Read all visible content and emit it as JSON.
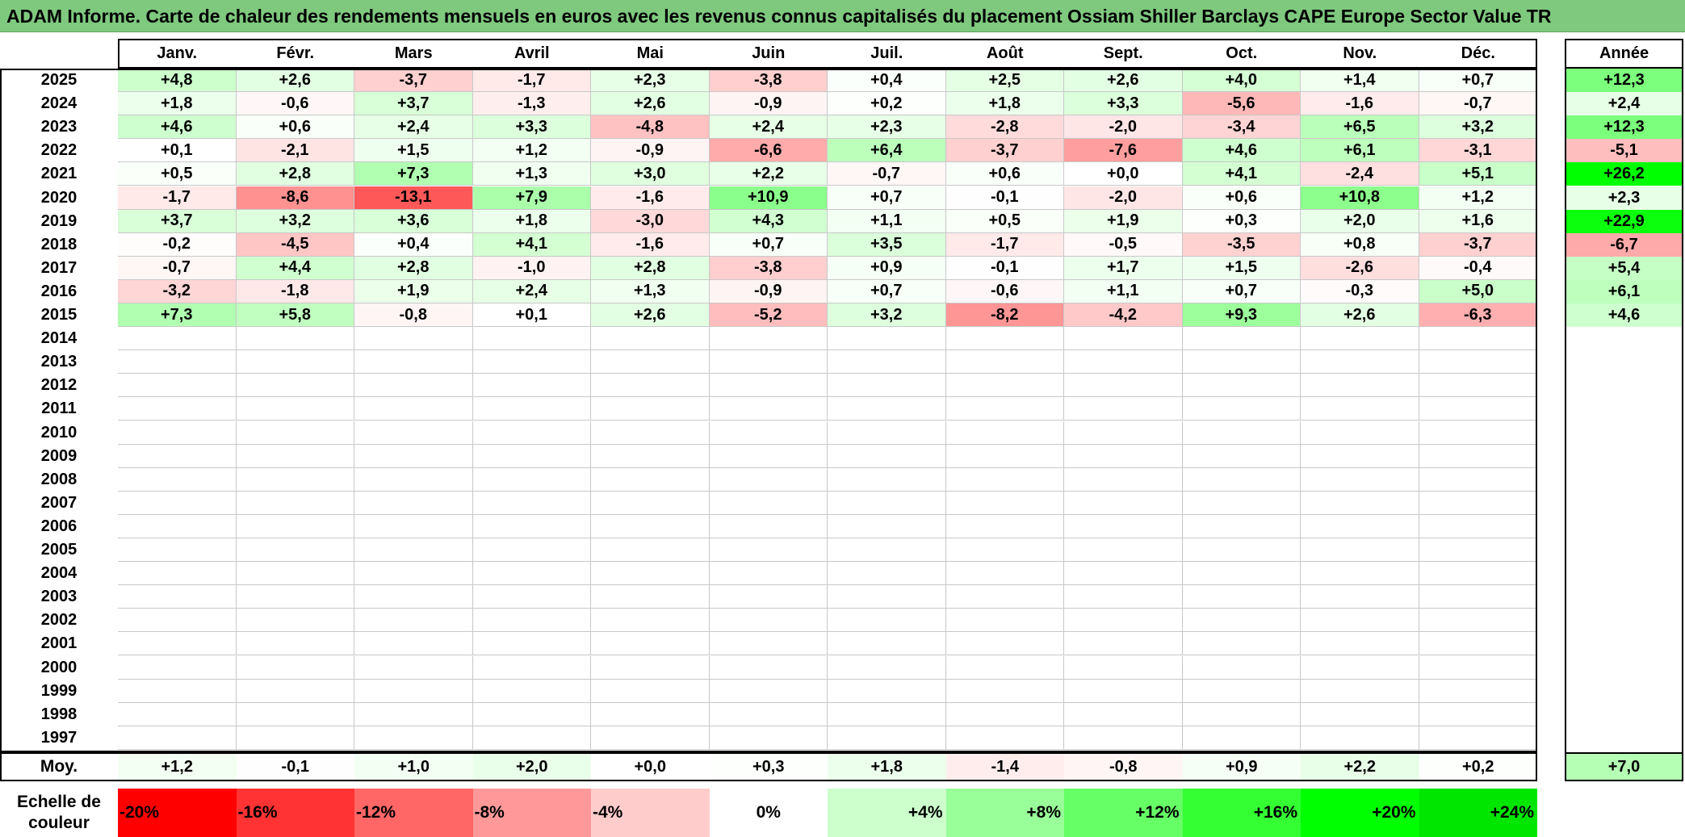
{
  "title": "ADAM Informe. Carte de chaleur des rendements mensuels en euros avec les revenus connus capitalisés du placement Ossiam Shiller Barclays CAPE Europe Sector Value TR",
  "chart_data": {
    "type": "heatmap",
    "title": "ADAM Informe. Carte de chaleur des rendements mensuels en euros avec les revenus connus capitalisés du placement Ossiam Shiller Barclays CAPE Europe Sector Value TR",
    "months": [
      "Janv.",
      "Févr.",
      "Mars",
      "Avril",
      "Mai",
      "Juin",
      "Juil.",
      "Août",
      "Sept.",
      "Oct.",
      "Nov.",
      "Déc."
    ],
    "year_header": "Année",
    "rows": [
      {
        "year": "2025",
        "values": [
          "+4,8",
          "+2,6",
          "-3,7",
          "-1,7",
          "+2,3",
          "-3,8",
          "+0,4",
          "+2,5",
          "+2,6",
          "+4,0",
          "+1,4",
          "+0,7"
        ],
        "annual": "+12,3"
      },
      {
        "year": "2024",
        "values": [
          "+1,8",
          "-0,6",
          "+3,7",
          "-1,3",
          "+2,6",
          "-0,9",
          "+0,2",
          "+1,8",
          "+3,3",
          "-5,6",
          "-1,6",
          "-0,7"
        ],
        "annual": "+2,4"
      },
      {
        "year": "2023",
        "values": [
          "+4,6",
          "+0,6",
          "+2,4",
          "+3,3",
          "-4,8",
          "+2,4",
          "+2,3",
          "-2,8",
          "-2,0",
          "-3,4",
          "+6,5",
          "+3,2"
        ],
        "annual": "+12,3"
      },
      {
        "year": "2022",
        "values": [
          "+0,1",
          "-2,1",
          "+1,5",
          "+1,2",
          "-0,9",
          "-6,6",
          "+6,4",
          "-3,7",
          "-7,6",
          "+4,6",
          "+6,1",
          "-3,1"
        ],
        "annual": "-5,1"
      },
      {
        "year": "2021",
        "values": [
          "+0,5",
          "+2,8",
          "+7,3",
          "+1,3",
          "+3,0",
          "+2,2",
          "-0,7",
          "+0,6",
          "+0,0",
          "+4,1",
          "-2,4",
          "+5,1"
        ],
        "annual": "+26,2"
      },
      {
        "year": "2020",
        "values": [
          "-1,7",
          "-8,6",
          "-13,1",
          "+7,9",
          "-1,6",
          "+10,9",
          "+0,7",
          "-0,1",
          "-2,0",
          "+0,6",
          "+10,8",
          "+1,2"
        ],
        "annual": "+2,3"
      },
      {
        "year": "2019",
        "values": [
          "+3,7",
          "+3,2",
          "+3,6",
          "+1,8",
          "-3,0",
          "+4,3",
          "+1,1",
          "+0,5",
          "+1,9",
          "+0,3",
          "+2,0",
          "+1,6"
        ],
        "annual": "+22,9"
      },
      {
        "year": "2018",
        "values": [
          "-0,2",
          "-4,5",
          "+0,4",
          "+4,1",
          "-1,6",
          "+0,7",
          "+3,5",
          "-1,7",
          "-0,5",
          "-3,5",
          "+0,8",
          "-3,7"
        ],
        "annual": "-6,7"
      },
      {
        "year": "2017",
        "values": [
          "-0,7",
          "+4,4",
          "+2,8",
          "-1,0",
          "+2,8",
          "-3,8",
          "+0,9",
          "-0,1",
          "+1,7",
          "+1,5",
          "-2,6",
          "-0,4"
        ],
        "annual": "+5,4"
      },
      {
        "year": "2016",
        "values": [
          "-3,2",
          "-1,8",
          "+1,9",
          "+2,4",
          "+1,3",
          "-0,9",
          "+0,7",
          "-0,6",
          "+1,1",
          "+0,7",
          "-0,3",
          "+5,0"
        ],
        "annual": "+6,1"
      },
      {
        "year": "2015",
        "values": [
          "+7,3",
          "+5,8",
          "-0,8",
          "+0,1",
          "+2,6",
          "-5,2",
          "+3,2",
          "-8,2",
          "-4,2",
          "+9,3",
          "+2,6",
          "-6,3"
        ],
        "annual": "+4,6"
      },
      {
        "year": "2014",
        "values": [
          "",
          "",
          "",
          "",
          "",
          "",
          "",
          "",
          "",
          "",
          "",
          ""
        ],
        "annual": ""
      },
      {
        "year": "2013",
        "values": [
          "",
          "",
          "",
          "",
          "",
          "",
          "",
          "",
          "",
          "",
          "",
          ""
        ],
        "annual": ""
      },
      {
        "year": "2012",
        "values": [
          "",
          "",
          "",
          "",
          "",
          "",
          "",
          "",
          "",
          "",
          "",
          ""
        ],
        "annual": ""
      },
      {
        "year": "2011",
        "values": [
          "",
          "",
          "",
          "",
          "",
          "",
          "",
          "",
          "",
          "",
          "",
          ""
        ],
        "annual": ""
      },
      {
        "year": "2010",
        "values": [
          "",
          "",
          "",
          "",
          "",
          "",
          "",
          "",
          "",
          "",
          "",
          ""
        ],
        "annual": ""
      },
      {
        "year": "2009",
        "values": [
          "",
          "",
          "",
          "",
          "",
          "",
          "",
          "",
          "",
          "",
          "",
          ""
        ],
        "annual": ""
      },
      {
        "year": "2008",
        "values": [
          "",
          "",
          "",
          "",
          "",
          "",
          "",
          "",
          "",
          "",
          "",
          ""
        ],
        "annual": ""
      },
      {
        "year": "2007",
        "values": [
          "",
          "",
          "",
          "",
          "",
          "",
          "",
          "",
          "",
          "",
          "",
          ""
        ],
        "annual": ""
      },
      {
        "year": "2006",
        "values": [
          "",
          "",
          "",
          "",
          "",
          "",
          "",
          "",
          "",
          "",
          "",
          ""
        ],
        "annual": ""
      },
      {
        "year": "2005",
        "values": [
          "",
          "",
          "",
          "",
          "",
          "",
          "",
          "",
          "",
          "",
          "",
          ""
        ],
        "annual": ""
      },
      {
        "year": "2004",
        "values": [
          "",
          "",
          "",
          "",
          "",
          "",
          "",
          "",
          "",
          "",
          "",
          ""
        ],
        "annual": ""
      },
      {
        "year": "2003",
        "values": [
          "",
          "",
          "",
          "",
          "",
          "",
          "",
          "",
          "",
          "",
          "",
          ""
        ],
        "annual": ""
      },
      {
        "year": "2002",
        "values": [
          "",
          "",
          "",
          "",
          "",
          "",
          "",
          "",
          "",
          "",
          "",
          ""
        ],
        "annual": ""
      },
      {
        "year": "2001",
        "values": [
          "",
          "",
          "",
          "",
          "",
          "",
          "",
          "",
          "",
          "",
          "",
          ""
        ],
        "annual": ""
      },
      {
        "year": "2000",
        "values": [
          "",
          "",
          "",
          "",
          "",
          "",
          "",
          "",
          "",
          "",
          "",
          ""
        ],
        "annual": ""
      },
      {
        "year": "1999",
        "values": [
          "",
          "",
          "",
          "",
          "",
          "",
          "",
          "",
          "",
          "",
          "",
          ""
        ],
        "annual": ""
      },
      {
        "year": "1998",
        "values": [
          "",
          "",
          "",
          "",
          "",
          "",
          "",
          "",
          "",
          "",
          "",
          ""
        ],
        "annual": ""
      },
      {
        "year": "1997",
        "values": [
          "",
          "",
          "",
          "",
          "",
          "",
          "",
          "",
          "",
          "",
          "",
          ""
        ],
        "annual": ""
      }
    ],
    "average": {
      "label": "Moy.",
      "values": [
        "+1,2",
        "-0,1",
        "+1,0",
        "+2,0",
        "+0,0",
        "+0,3",
        "+1,8",
        "-1,4",
        "-0,8",
        "+0,9",
        "+2,2",
        "+0,2"
      ],
      "annual": "+7,0"
    },
    "scale": {
      "label_line1": "Echelle de",
      "label_line2": "couleur",
      "steps": [
        {
          "label": "-20%",
          "value": -20,
          "color": "#ff0000"
        },
        {
          "label": "-16%",
          "value": -16,
          "color": "#ff3333"
        },
        {
          "label": "-12%",
          "value": -12,
          "color": "#ff6666"
        },
        {
          "label": "-8%",
          "value": -8,
          "color": "#ff9999"
        },
        {
          "label": "-4%",
          "value": -4,
          "color": "#ffcccc"
        },
        {
          "label": "0%",
          "value": 0,
          "color": "#ffffff"
        },
        {
          "label": "+4%",
          "value": 4,
          "color": "#ccffcc"
        },
        {
          "label": "+8%",
          "value": 8,
          "color": "#99ff99"
        },
        {
          "label": "+12%",
          "value": 12,
          "color": "#66ff66"
        },
        {
          "label": "+16%",
          "value": 16,
          "color": "#33ff33"
        },
        {
          "label": "+20%",
          "value": 20,
          "color": "#00ff00"
        },
        {
          "label": "+24%",
          "value": 24,
          "color": "#00e600"
        }
      ]
    }
  }
}
